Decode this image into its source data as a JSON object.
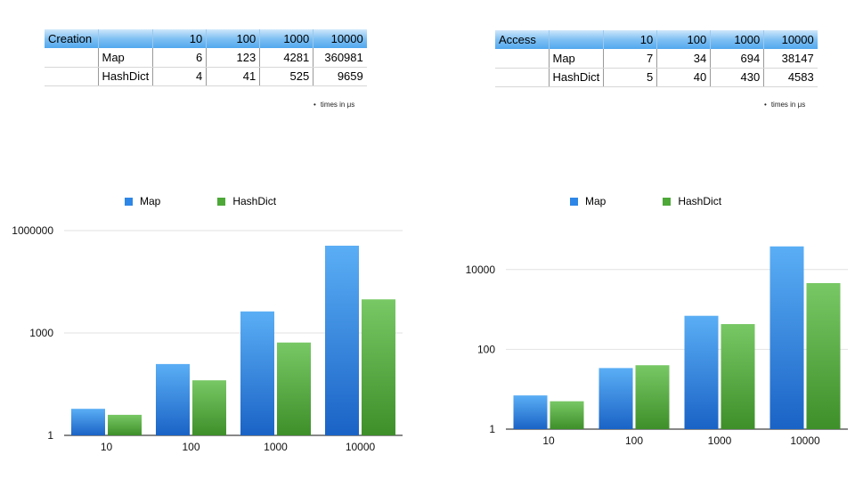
{
  "colors": {
    "map": "#2e86e6",
    "hashdict": "#4da838",
    "header": "#6cb6f1"
  },
  "tables": [
    {
      "title": "Creation",
      "columns": [
        "10",
        "100",
        "1000",
        "10000"
      ],
      "rows": [
        {
          "name": "Map",
          "values": [
            "6",
            "123",
            "4281",
            "360981"
          ]
        },
        {
          "name": "HashDict",
          "values": [
            "4",
            "41",
            "525",
            "9659"
          ]
        }
      ],
      "note": "times in μs"
    },
    {
      "title": "Access",
      "columns": [
        "10",
        "100",
        "1000",
        "10000"
      ],
      "rows": [
        {
          "name": "Map",
          "values": [
            "7",
            "34",
            "694",
            "38147"
          ]
        },
        {
          "name": "HashDict",
          "values": [
            "5",
            "40",
            "430",
            "4583"
          ]
        }
      ],
      "note": "times in μs"
    }
  ],
  "chart_data": [
    {
      "type": "bar",
      "yscale": "log",
      "categories": [
        "10",
        "100",
        "1000",
        "10000"
      ],
      "series": [
        {
          "name": "Map",
          "values": [
            6,
            123,
            4281,
            360981
          ]
        },
        {
          "name": "HashDict",
          "values": [
            4,
            41,
            525,
            9659
          ]
        }
      ],
      "yticks": [
        1,
        1000,
        1000000
      ],
      "ytick_labels": [
        "1",
        "1000",
        "1000000"
      ],
      "ylim": [
        1,
        1000000
      ],
      "grid": true,
      "legend": "top"
    },
    {
      "type": "bar",
      "yscale": "log",
      "categories": [
        "10",
        "100",
        "1000",
        "10000"
      ],
      "series": [
        {
          "name": "Map",
          "values": [
            7,
            34,
            694,
            38147
          ]
        },
        {
          "name": "HashDict",
          "values": [
            5,
            40,
            430,
            4583
          ]
        }
      ],
      "yticks": [
        1,
        100,
        10000
      ],
      "ytick_labels": [
        "1",
        "100",
        "10000"
      ],
      "ylim": [
        1,
        100000
      ],
      "grid": true,
      "legend": "top"
    }
  ]
}
